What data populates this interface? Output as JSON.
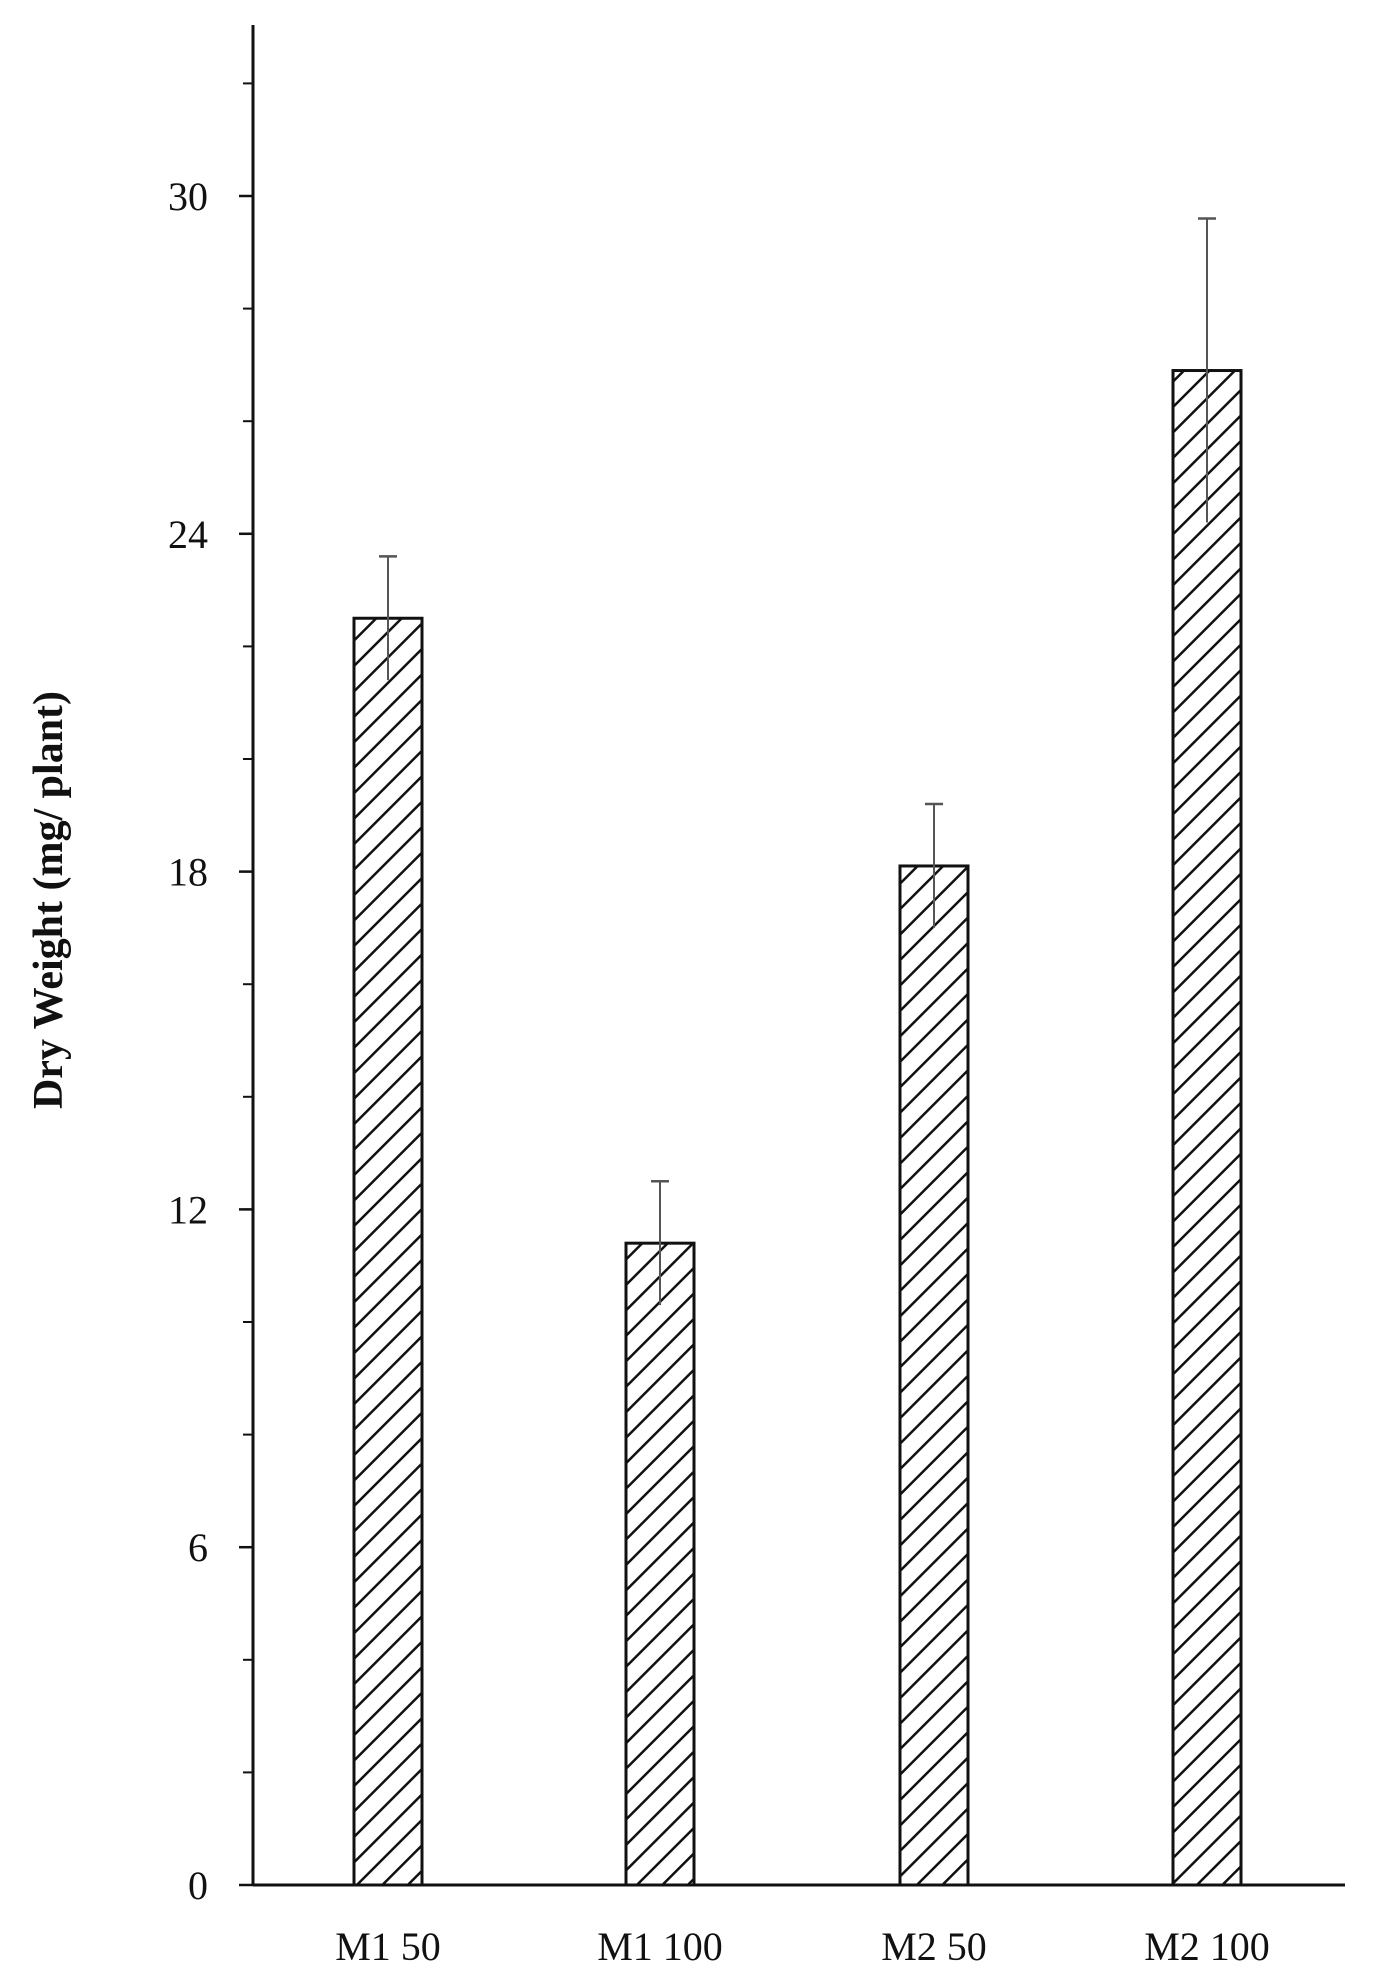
{
  "chart_data": {
    "type": "bar",
    "title": "",
    "xlabel": "",
    "ylabel": "Dry Weight  (mg/ plant)",
    "categories": [
      "M1 50",
      "M1 100",
      "M2 50",
      "M2 100"
    ],
    "values": [
      22.5,
      11.4,
      18.1,
      26.9
    ],
    "errors": [
      1.1,
      1.1,
      1.1,
      2.7
    ],
    "ylim": [
      0,
      33
    ],
    "yticks_labeled": [
      0,
      6,
      12,
      18,
      24,
      30
    ],
    "yticks_minor_step": 2,
    "grid": false,
    "legend": "none",
    "bar_fill": "diagonal-hatch",
    "colors": {
      "bar_stroke": "#111111",
      "hatch": "#111111",
      "axis": "#111111",
      "error_bar": "#555555",
      "background": "#ffffff"
    }
  }
}
